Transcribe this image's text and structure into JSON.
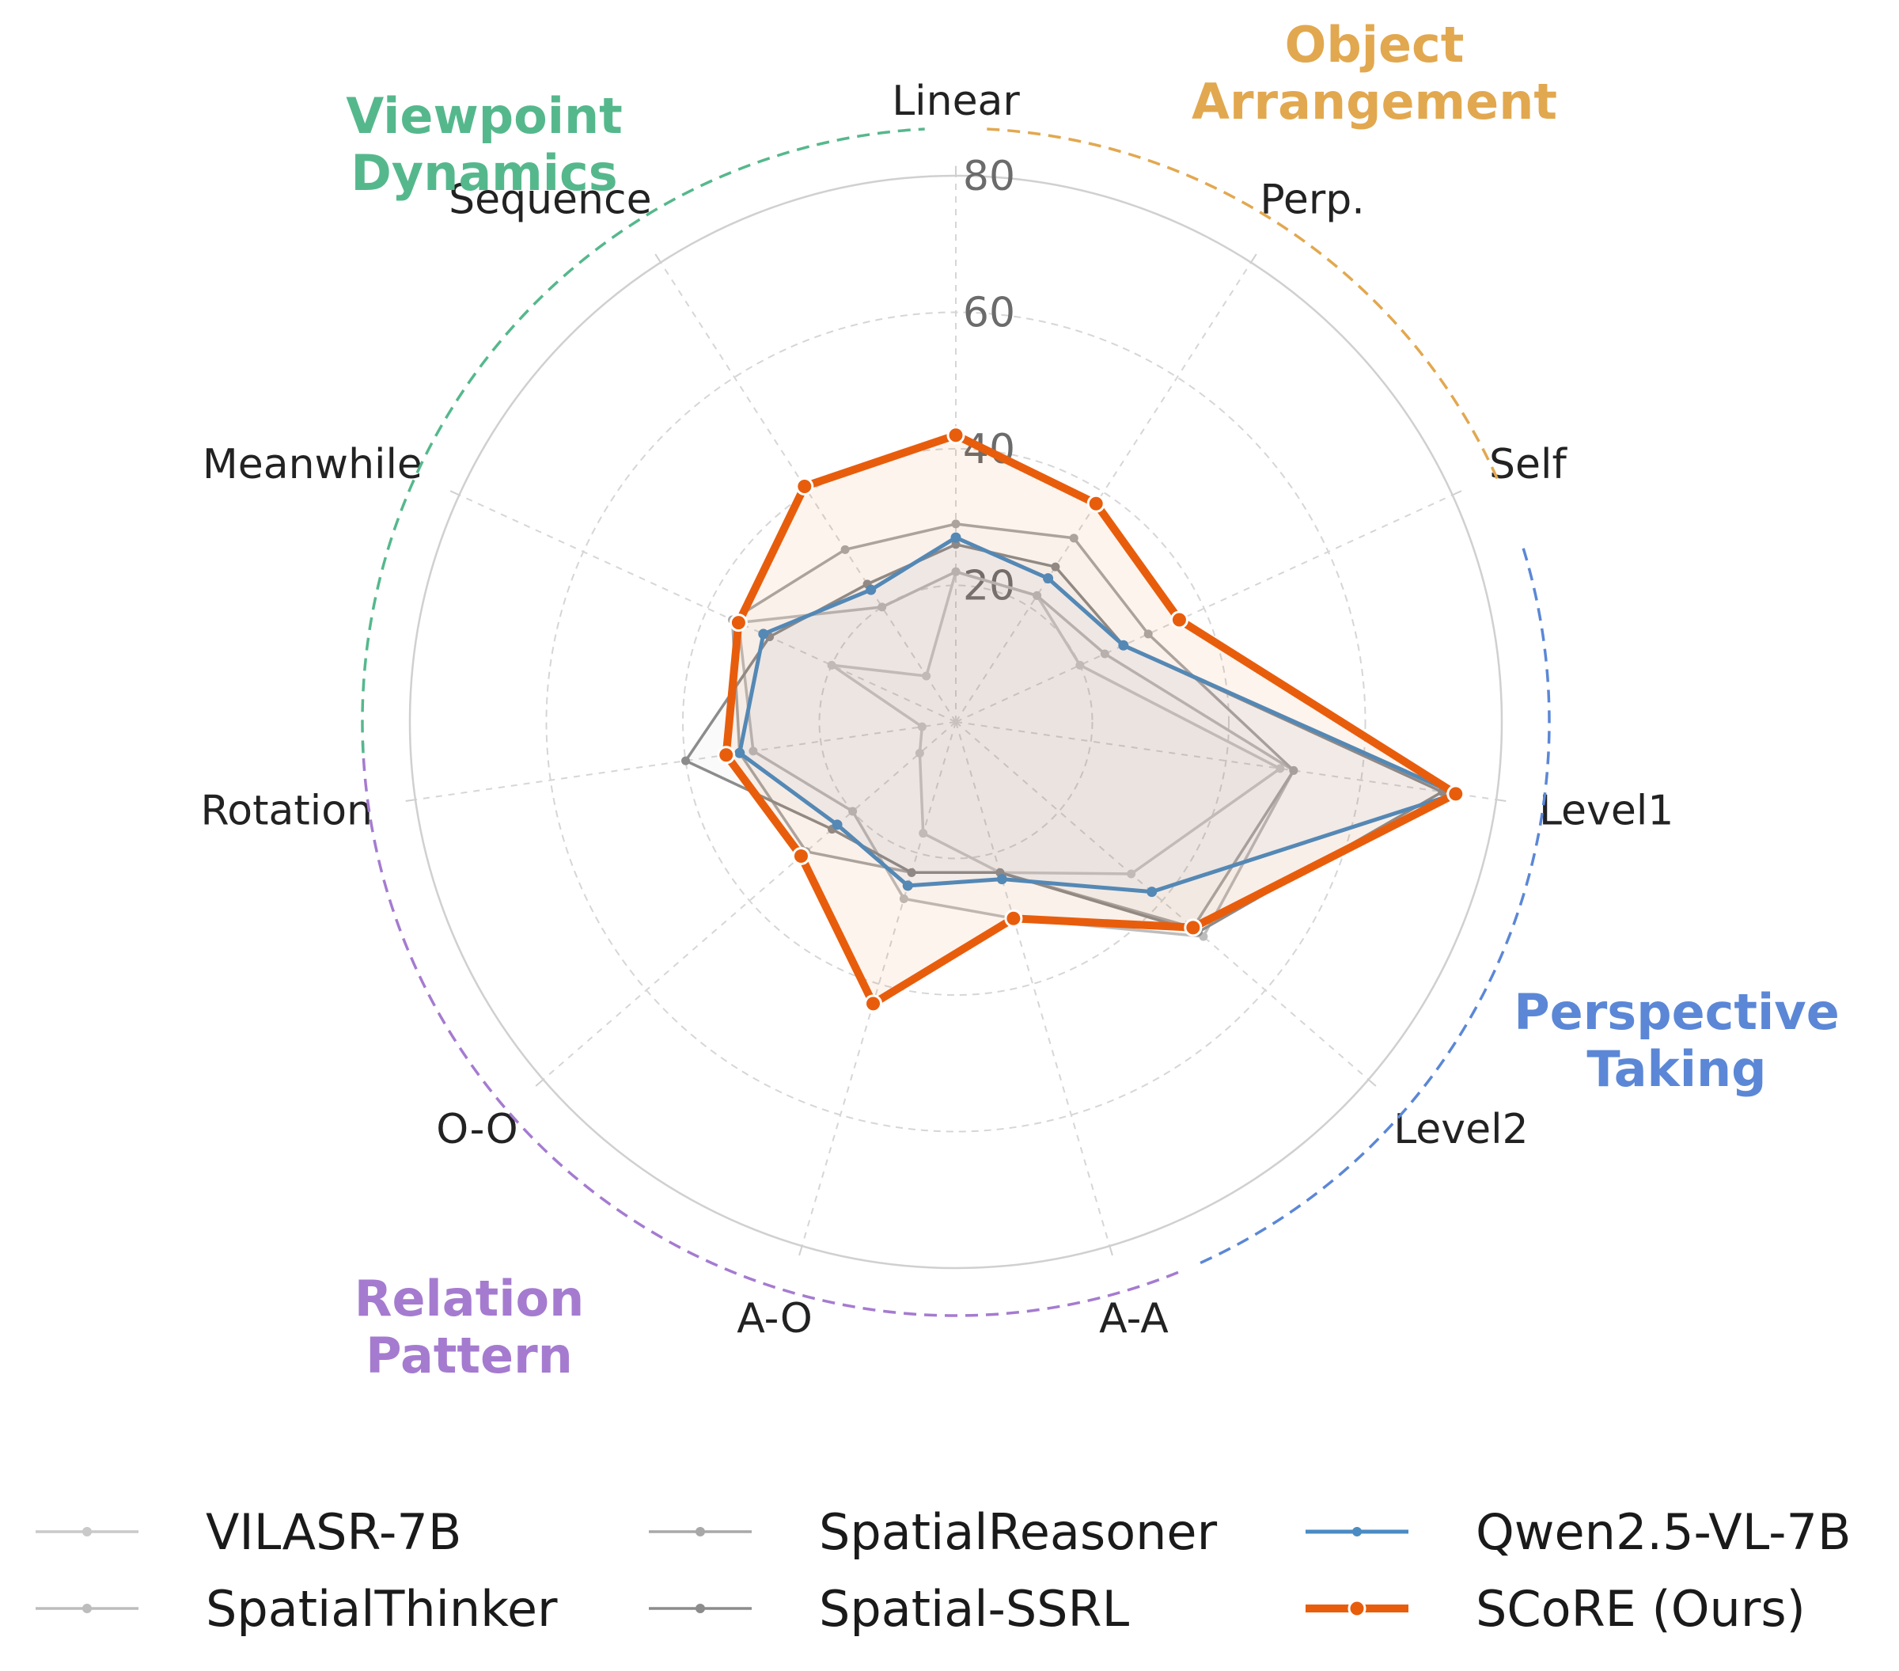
{
  "chart_data": {
    "type": "radar",
    "axes": [
      "Linear",
      "Perp.",
      "Self",
      "Level1",
      "Level2",
      "A-A",
      "A-O",
      "O-O",
      "Rotation",
      "Meanwhile",
      "Sequence"
    ],
    "radial_ticks": [
      "20",
      "40",
      "60",
      "80"
    ],
    "rlim": [
      0,
      80
    ],
    "groups": [
      {
        "label_lines": [
          "Object",
          "Arrangement"
        ],
        "color": "#e2a84f"
      },
      {
        "label_lines": [
          "Perspective",
          "Taking"
        ],
        "color": "#5b87d6"
      },
      {
        "label_lines": [
          "Relation",
          "Pattern"
        ],
        "color": "#a57bd0"
      },
      {
        "label_lines": [
          "Viewpoint",
          "Dynamics"
        ],
        "color": "#55b88c"
      }
    ],
    "series": [
      {
        "name": "VILASR-7B",
        "color": "#c9c9c9",
        "values": [
          22,
          22,
          20,
          48,
          34,
          23,
          17,
          7,
          5,
          20,
          8
        ]
      },
      {
        "name": "SpatialThinker",
        "color": "#bdbdbd",
        "values": [
          22,
          22,
          24,
          50,
          48,
          30,
          27,
          20,
          30,
          35,
          20
        ]
      },
      {
        "name": "SpatialReasoner",
        "color": "#a8a8a8",
        "values": [
          29,
          32,
          31,
          50,
          46,
          23,
          23,
          29,
          32,
          36,
          30
        ]
      },
      {
        "name": "Spatial-SSRL",
        "color": "#8c8c8c",
        "values": [
          26,
          27,
          27,
          72,
          47,
          23,
          23,
          24,
          40,
          30,
          24
        ]
      },
      {
        "name": "Qwen2.5-VL-7B",
        "color": "#4a8bc2",
        "values": [
          27,
          25,
          27,
          74,
          38,
          24,
          25,
          23,
          32,
          31,
          23
        ]
      },
      {
        "name": "SCoRE (Ours)",
        "color": "#e85d0c",
        "values": [
          42,
          38,
          36,
          74,
          46,
          30,
          43,
          30,
          34,
          35,
          41
        ]
      }
    ]
  }
}
